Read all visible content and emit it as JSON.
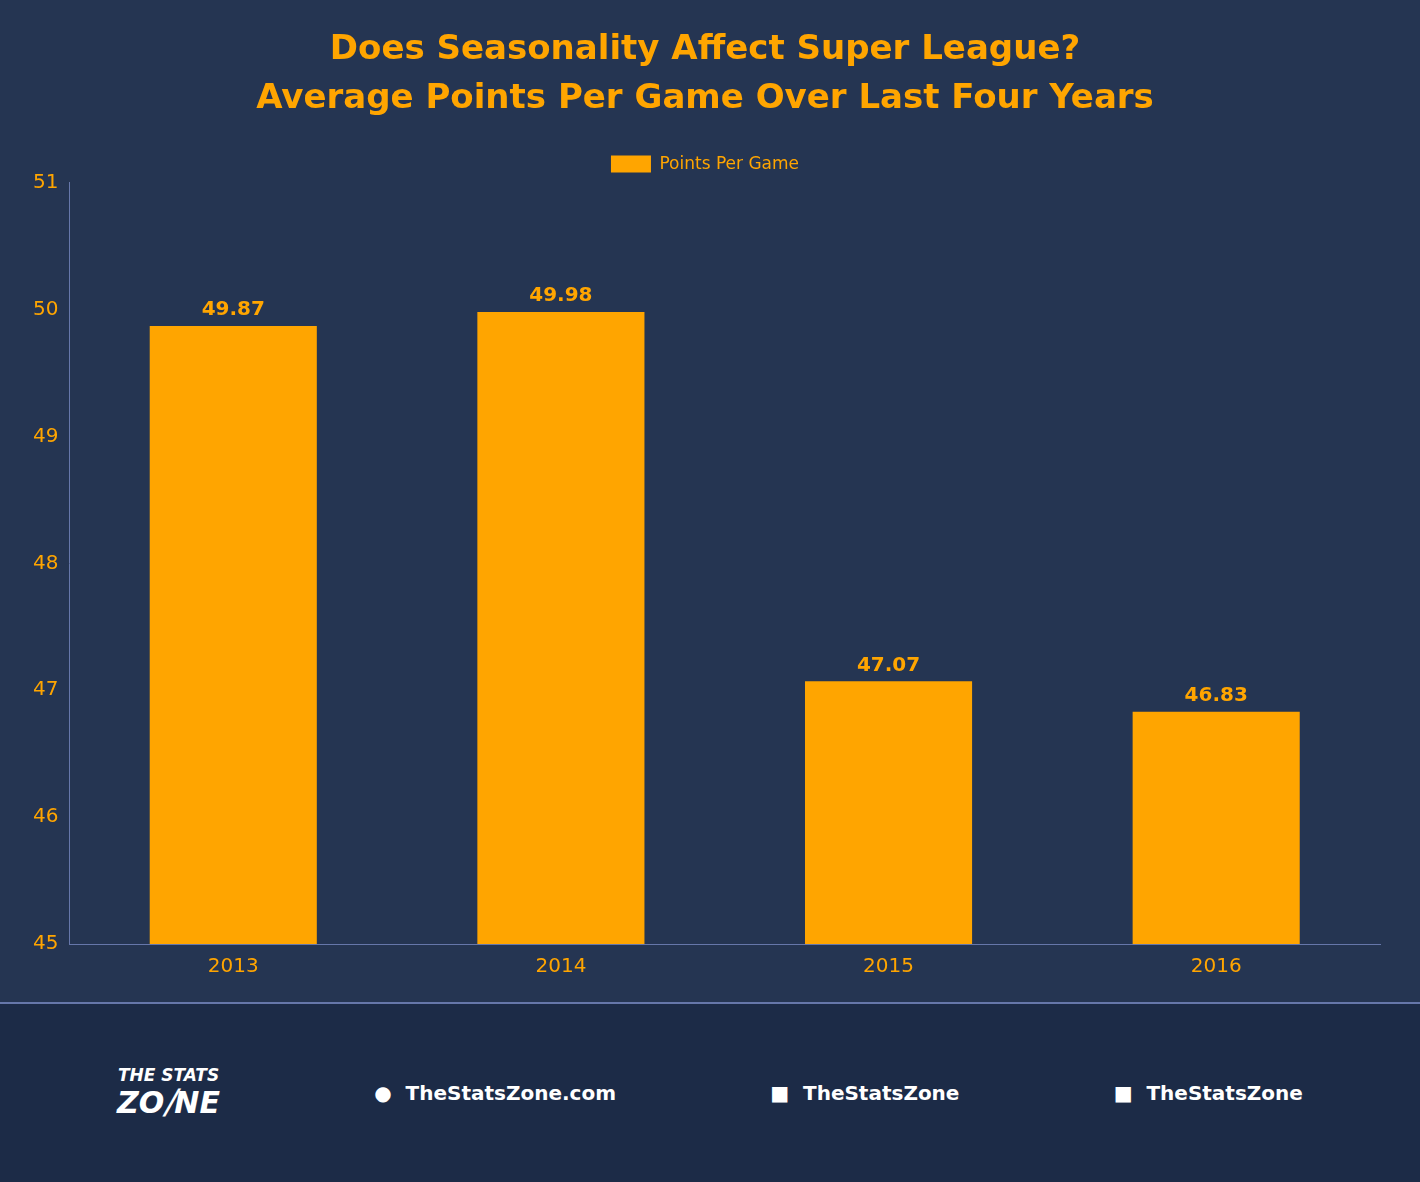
{
  "chart_data": {
    "type": "bar",
    "title": "Does Seasonality Affect Super League?",
    "subtitle": "Average Points Per Game Over Last Four Years",
    "categories": [
      "2013",
      "2014",
      "2015",
      "2016"
    ],
    "series": [
      {
        "name": "Points Per Game",
        "color": "#FFA500",
        "values": [
          49.87,
          49.98,
          47.07,
          46.83
        ]
      }
    ],
    "ylim": [
      45,
      51
    ],
    "yticks": [
      45,
      46,
      47,
      48,
      49,
      50,
      51
    ],
    "grid": false,
    "data_labels": true,
    "annotations": [
      "THE STATS",
      "ZO⧸NE",
      "●  TheStatsZone.com",
      "■  TheStatsZone",
      "■  TheStatsZone"
    ]
  }
}
